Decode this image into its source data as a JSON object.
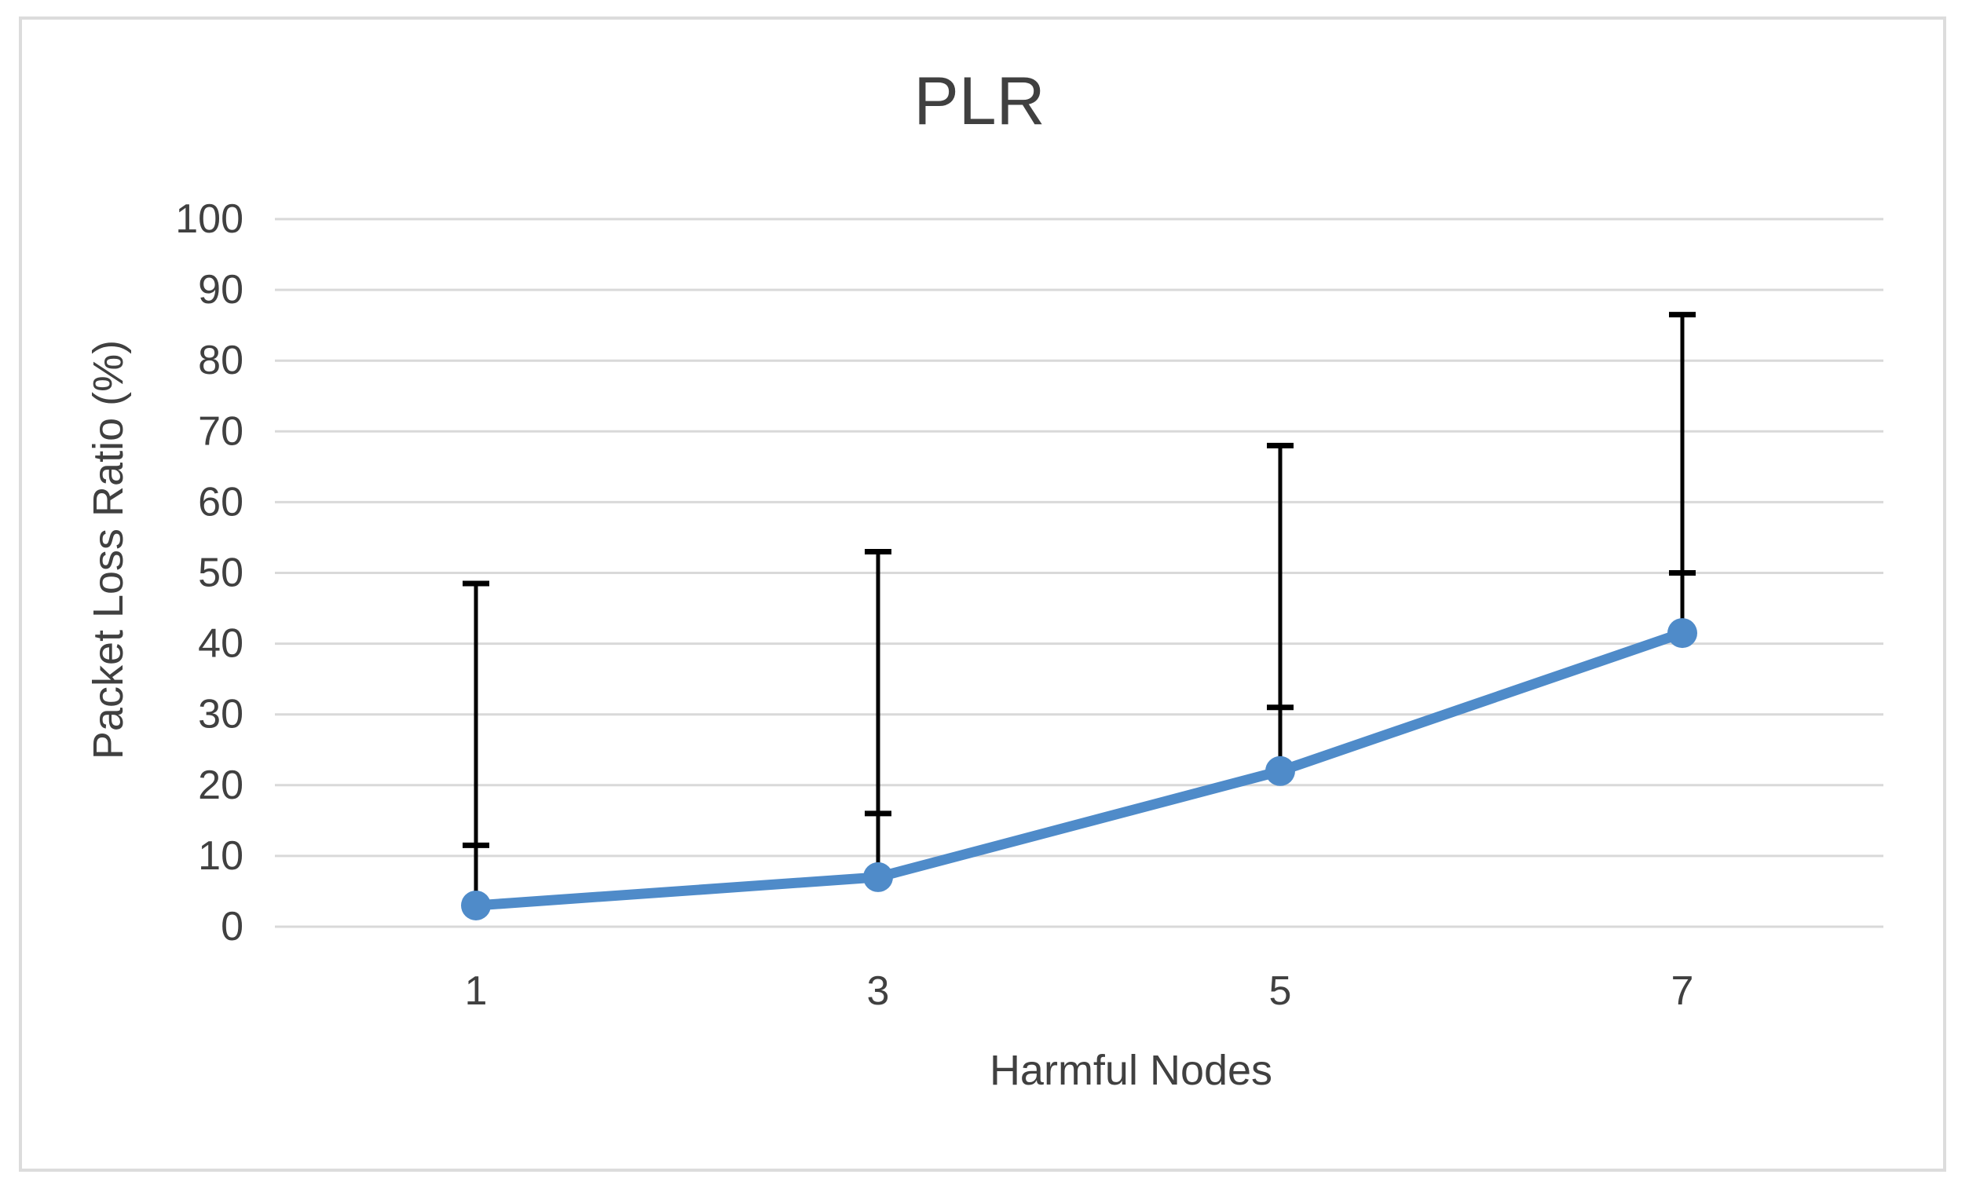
{
  "chart_data": {
    "type": "line",
    "title": "PLR",
    "xlabel": "Harmful Nodes",
    "ylabel": "Packet Loss Ratio (%)",
    "categories": [
      "1",
      "3",
      "5",
      "7"
    ],
    "series": [
      {
        "name": "PLR",
        "values": [
          3,
          7,
          22,
          41.5
        ],
        "error_bar_top": [
          48.5,
          53,
          68,
          86.5
        ],
        "error_bar_mid_tick": [
          11.5,
          16,
          31,
          50
        ]
      }
    ],
    "ylim": [
      0,
      100
    ],
    "ytick_step": 10,
    "yticks": [
      0,
      10,
      20,
      30,
      40,
      50,
      60,
      70,
      80,
      90,
      100
    ],
    "grid": "horizontal",
    "legend": "none",
    "marker": "circle",
    "colors": {
      "series": "#4f8bc9",
      "error_bar": "#000000",
      "gridline": "#d9d9d9",
      "border": "#dcdcdc",
      "text": "#404040",
      "background": "#ffffff"
    }
  }
}
